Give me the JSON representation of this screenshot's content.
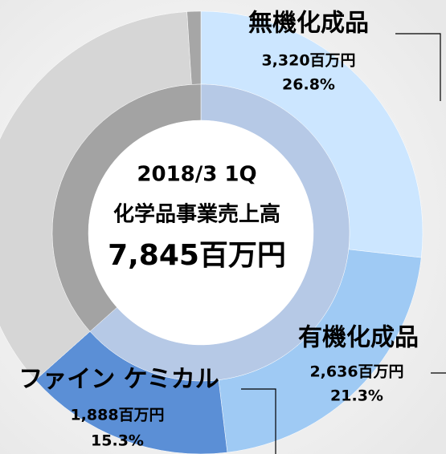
{
  "chart_data": {
    "type": "donut",
    "center_lines": [
      "2018/3  1Q",
      "化学品事業売上高",
      "7,845百万円"
    ],
    "series": [
      {
        "name": "outer",
        "categories": [
          "無機化成品",
          "有機化成品",
          "ファイン ケミカル",
          null,
          null
        ],
        "values": [
          26.8,
          21.3,
          15.3,
          35.6,
          1.0
        ],
        "value_labels": [
          "26.8%",
          "21.3%",
          "15.3%",
          null,
          null
        ],
        "amount_labels": [
          "3,320百万円",
          "2,636百万円",
          "1,888百万円",
          null,
          null
        ],
        "colors": [
          "#cce6ff",
          "#9fcaf4",
          "#5b8fd6",
          "#d6d6d6",
          "#a6a6a6"
        ]
      },
      {
        "name": "inner",
        "categories": [
          null,
          null
        ],
        "values": [
          63.4,
          36.6
        ],
        "colors": [
          "#b6c9e6",
          "#a3a3a3"
        ]
      }
    ]
  }
}
